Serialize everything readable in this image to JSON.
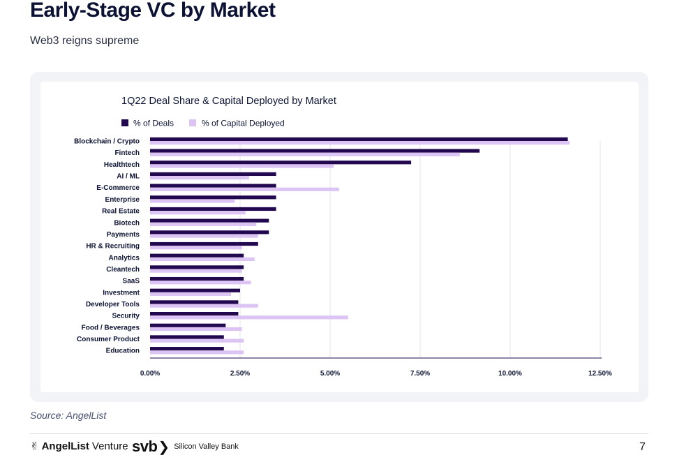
{
  "page": {
    "title": "Early-Stage VC by Market",
    "subtitle": "Web3 reigns supreme",
    "source": "Source: AngelList",
    "page_number": "7"
  },
  "footer": {
    "angellist_logo": "AngelList Venture",
    "angellist_bold": "AngelList",
    "angellist_light": "Venture",
    "svb_logo_word": "svb",
    "svb_logo_name": "Silicon Valley Bank"
  },
  "colors": {
    "deals": "#22084f",
    "capital": "#dcc4f4",
    "grid": "#e4e6ee",
    "axis": "#22084f",
    "text": "#0b1233"
  },
  "chart_data": {
    "type": "bar",
    "orientation": "horizontal",
    "title": "1Q22 Deal Share & Capital Deployed by Market",
    "xlabel": "",
    "ylabel": "",
    "xlim": [
      0,
      12.5
    ],
    "xticks": [
      0,
      2.5,
      5,
      7.5,
      10,
      12.5
    ],
    "xtick_labels": [
      "0.00%",
      "2.50%",
      "5.00%",
      "7.50%",
      "10.00%",
      "12.50%"
    ],
    "legend_position": "top-left",
    "categories": [
      "Blockchain / Crypto",
      "Fintech",
      "Healthtech",
      "AI / ML",
      "E-Commerce",
      "Enterprise",
      "Real Estate",
      "Biotech",
      "Payments",
      "HR & Recruiting",
      "Analytics",
      "Cleantech",
      "SaaS",
      "Investment",
      "Developer Tools",
      "Security",
      "Food / Beverages",
      "Consumer Product",
      "Education"
    ],
    "series": [
      {
        "name": "% of Deals",
        "values": [
          11.6,
          9.15,
          7.25,
          3.5,
          3.5,
          3.5,
          3.5,
          3.3,
          3.3,
          3.0,
          2.6,
          2.6,
          2.6,
          2.5,
          2.45,
          2.45,
          2.1,
          2.05,
          2.05
        ]
      },
      {
        "name": "% of Capital Deployed",
        "values": [
          11.65,
          8.6,
          5.1,
          2.75,
          5.25,
          2.35,
          2.65,
          2.95,
          3.0,
          2.55,
          2.9,
          2.55,
          2.8,
          2.25,
          3.0,
          5.5,
          2.55,
          2.6,
          2.6
        ]
      }
    ]
  }
}
